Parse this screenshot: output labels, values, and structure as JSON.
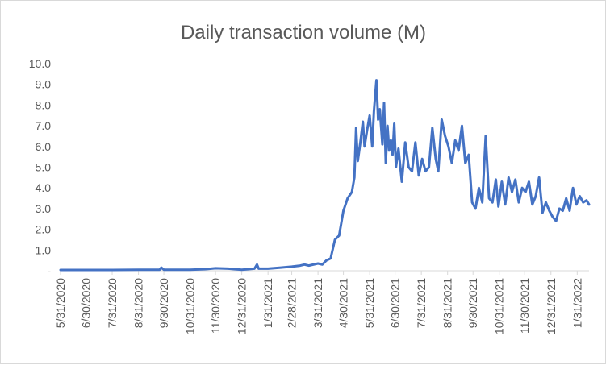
{
  "chart_data": {
    "type": "line",
    "title": "Daily transaction volume (M)",
    "xlabel": "",
    "ylabel": "",
    "ylim": [
      0,
      10
    ],
    "y_ticks": [
      "-",
      "1.0",
      "2.0",
      "3.0",
      "4.0",
      "5.0",
      "6.0",
      "7.0",
      "8.0",
      "9.0",
      "10.0"
    ],
    "x_tick_labels": [
      "5/31/2020",
      "6/30/2020",
      "7/31/2020",
      "8/31/2020",
      "9/30/2020",
      "10/31/2020",
      "11/30/2020",
      "12/31/2020",
      "1/31/2021",
      "2/28/2021",
      "3/31/2021",
      "4/30/2021",
      "5/31/2021",
      "6/30/2021",
      "7/31/2021",
      "8/31/2021",
      "9/30/2021",
      "10/31/2021",
      "11/30/2021",
      "12/31/2021",
      "1/31/2022"
    ],
    "grid": false,
    "line_color": "#4472c4",
    "series": [
      {
        "x": [
          "2020-05-31",
          "2020-06-30",
          "2020-07-31",
          "2020-08-31",
          "2020-09-25",
          "2020-09-27",
          "2020-09-30",
          "2020-10-31",
          "2020-11-20",
          "2020-11-30",
          "2020-12-15",
          "2020-12-31",
          "2021-01-15",
          "2021-01-18",
          "2021-01-20",
          "2021-01-31",
          "2021-02-15",
          "2021-02-28",
          "2021-03-10",
          "2021-03-15",
          "2021-03-20",
          "2021-03-31",
          "2021-04-05",
          "2021-04-10",
          "2021-04-15",
          "2021-04-20",
          "2021-04-25",
          "2021-04-30",
          "2021-05-05",
          "2021-05-10",
          "2021-05-13",
          "2021-05-15",
          "2021-05-17",
          "2021-05-20",
          "2021-05-23",
          "2021-05-25",
          "2021-05-28",
          "2021-05-31",
          "2021-06-03",
          "2021-06-05",
          "2021-06-08",
          "2021-06-10",
          "2021-06-12",
          "2021-06-15",
          "2021-06-17",
          "2021-06-19",
          "2021-06-21",
          "2021-06-23",
          "2021-06-25",
          "2021-06-27",
          "2021-06-29",
          "2021-07-01",
          "2021-07-04",
          "2021-07-08",
          "2021-07-12",
          "2021-07-16",
          "2021-07-20",
          "2021-07-24",
          "2021-07-28",
          "2021-08-01",
          "2021-08-05",
          "2021-08-09",
          "2021-08-13",
          "2021-08-17",
          "2021-08-20",
          "2021-08-24",
          "2021-08-28",
          "2021-09-01",
          "2021-09-05",
          "2021-09-09",
          "2021-09-13",
          "2021-09-17",
          "2021-09-21",
          "2021-09-25",
          "2021-09-29",
          "2021-10-03",
          "2021-10-07",
          "2021-10-11",
          "2021-10-15",
          "2021-10-19",
          "2021-10-23",
          "2021-10-27",
          "2021-10-30",
          "2021-11-03",
          "2021-11-07",
          "2021-11-11",
          "2021-11-15",
          "2021-11-19",
          "2021-11-23",
          "2021-11-27",
          "2021-12-01",
          "2021-12-05",
          "2021-12-09",
          "2021-12-13",
          "2021-12-17",
          "2021-12-21",
          "2021-12-25",
          "2021-12-29",
          "2022-01-02",
          "2022-01-06",
          "2022-01-10",
          "2022-01-14",
          "2022-01-18",
          "2022-01-22",
          "2022-01-26",
          "2022-01-30",
          "2022-02-03",
          "2022-02-07",
          "2022-02-11",
          "2022-02-14"
        ],
        "y": [
          0.04,
          0.04,
          0.04,
          0.05,
          0.05,
          0.15,
          0.05,
          0.05,
          0.08,
          0.12,
          0.1,
          0.05,
          0.1,
          0.3,
          0.1,
          0.1,
          0.15,
          0.2,
          0.25,
          0.3,
          0.25,
          0.35,
          0.3,
          0.5,
          0.6,
          1.5,
          1.7,
          2.9,
          3.5,
          3.8,
          4.5,
          6.9,
          5.3,
          6.2,
          7.2,
          6.0,
          6.8,
          7.5,
          6.0,
          7.7,
          9.2,
          7.3,
          7.8,
          6.1,
          8.1,
          5.2,
          7.0,
          5.8,
          6.3,
          5.6,
          7.1,
          5.0,
          5.9,
          4.3,
          6.2,
          5.0,
          4.8,
          6.2,
          4.6,
          5.4,
          4.8,
          5.0,
          6.9,
          5.4,
          4.8,
          7.3,
          6.5,
          6.0,
          5.2,
          6.3,
          5.8,
          7.0,
          5.2,
          5.6,
          3.3,
          3.0,
          4.0,
          3.3,
          6.5,
          3.5,
          3.3,
          4.4,
          3.1,
          4.3,
          3.2,
          4.5,
          3.8,
          4.4,
          3.3,
          4.0,
          3.8,
          4.3,
          3.2,
          3.6,
          4.5,
          2.8,
          3.3,
          2.9,
          2.6,
          2.4,
          3.0,
          2.9,
          3.5,
          2.9,
          4.0,
          3.2,
          3.6,
          3.3,
          3.4,
          3.2
        ]
      }
    ]
  }
}
